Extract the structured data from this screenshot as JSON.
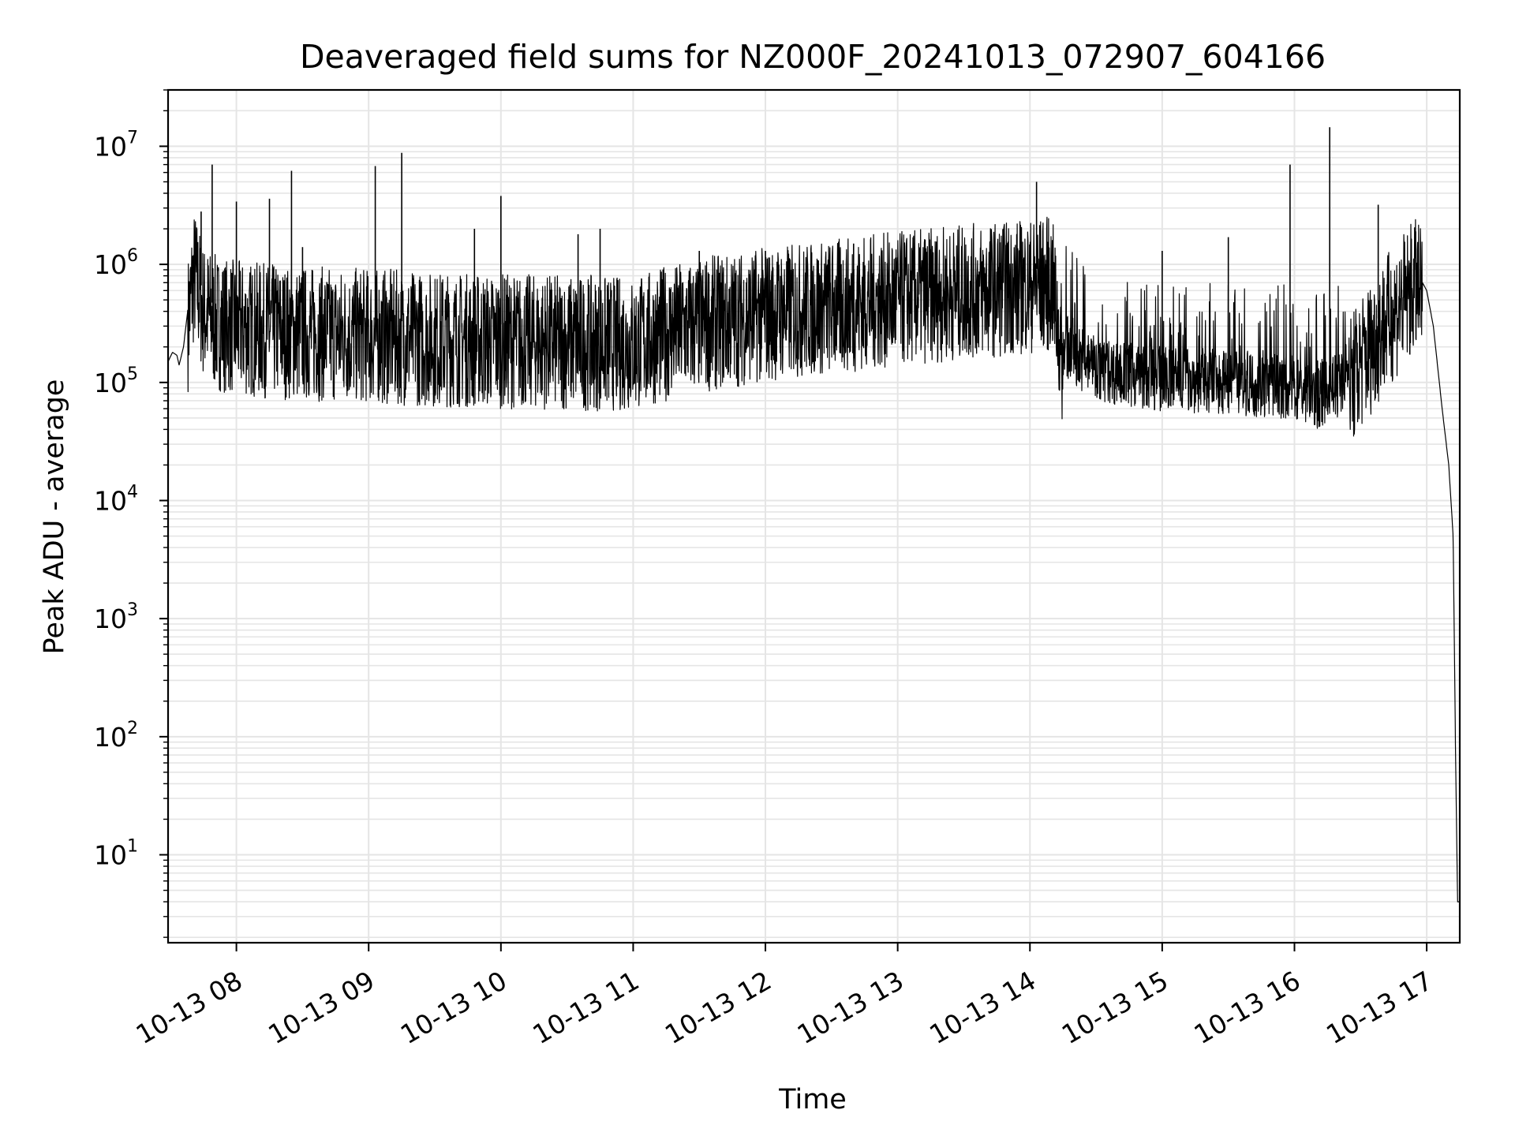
{
  "chart_data": {
    "type": "line",
    "title": "Deaveraged field sums for NZ000F_20241013_072907_604166",
    "xlabel": "Time",
    "ylabel": "Peak ADU - average",
    "yscale": "log",
    "grid": "on (major and minor)",
    "x_ticks": [
      "10-13 08",
      "10-13 09",
      "10-13 10",
      "10-13 11",
      "10-13 12",
      "10-13 13",
      "10-13 14",
      "10-13 15",
      "10-13 16",
      "10-13 17"
    ],
    "y_ticks": [
      {
        "base": "10",
        "exp": "1"
      },
      {
        "base": "10",
        "exp": "2"
      },
      {
        "base": "10",
        "exp": "3"
      },
      {
        "base": "10",
        "exp": "4"
      },
      {
        "base": "10",
        "exp": "5"
      },
      {
        "base": "10",
        "exp": "6"
      },
      {
        "base": "10",
        "exp": "7"
      }
    ],
    "xlim": [
      "2024-10-13 07:29",
      "2024-10-13 17:15"
    ],
    "ylim": [
      1.8,
      30000000
    ],
    "colors": {
      "line": "#000000",
      "grid": "#e5e5e5"
    },
    "series": [
      {
        "x": [
          "2024-10-13 07:29",
          "2024-10-13 07:31",
          "2024-10-13 07:33",
          "2024-10-13 07:34",
          "2024-10-13 07:36",
          "2024-10-13 07:38",
          "2024-10-13 07:40",
          "2024-10-13 07:41",
          "2024-10-13 07:43",
          "2024-10-13 07:45",
          "2024-10-13 07:48",
          "2024-10-13 07:50",
          "2024-10-13 07:55",
          "2024-10-13 08:00",
          "2024-10-13 08:10",
          "2024-10-13 08:20",
          "2024-10-13 08:30",
          "2024-10-13 08:45",
          "2024-10-13 09:00",
          "2024-10-13 09:15",
          "2024-10-13 09:30",
          "2024-10-13 10:00",
          "2024-10-13 10:30",
          "2024-10-13 11:00",
          "2024-10-13 11:15",
          "2024-10-13 11:30",
          "2024-10-13 12:00",
          "2024-10-13 12:30",
          "2024-10-13 13:00",
          "2024-10-13 13:30",
          "2024-10-13 14:00",
          "2024-10-13 14:10",
          "2024-10-13 14:15",
          "2024-10-13 14:30",
          "2024-10-13 15:00",
          "2024-10-13 15:30",
          "2024-10-13 16:00",
          "2024-10-13 16:10",
          "2024-10-13 16:20",
          "2024-10-13 16:30",
          "2024-10-13 16:40",
          "2024-10-13 16:50",
          "2024-10-13 16:55",
          "2024-10-13 17:00",
          "2024-10-13 17:03",
          "2024-10-13 17:07",
          "2024-10-13 17:10",
          "2024-10-13 17:11",
          "2024-10-13 17:12",
          "2024-10-13 17:13",
          "2024-10-13 17:14",
          "2024-10-13 17:15"
        ],
        "values": [
          150000,
          180000,
          170000,
          140000,
          200000,
          420000,
          900000,
          1100000,
          800000,
          550000,
          500000,
          450000,
          420000,
          400000,
          380000,
          370000,
          360000,
          350000,
          340000,
          330000,
          320000,
          310000,
          300000,
          290000,
          360000,
          420000,
          520000,
          600000,
          700000,
          800000,
          900000,
          950000,
          200000,
          120000,
          100000,
          95000,
          85000,
          70000,
          90000,
          200000,
          400000,
          700000,
          900000,
          600000,
          300000,
          60000,
          20000,
          10000,
          5000,
          100,
          4,
          4
        ]
      }
    ],
    "spikes": {
      "x": [
        "2024-10-13 07:44",
        "2024-10-13 07:49",
        "2024-10-13 08:00",
        "2024-10-13 08:15",
        "2024-10-13 08:25",
        "2024-10-13 08:30",
        "2024-10-13 09:03",
        "2024-10-13 09:15",
        "2024-10-13 09:48",
        "2024-10-13 10:00",
        "2024-10-13 10:35",
        "2024-10-13 10:45",
        "2024-10-13 11:30",
        "2024-10-13 12:00",
        "2024-10-13 12:40",
        "2024-10-13 14:03",
        "2024-10-13 15:00",
        "2024-10-13 15:30",
        "2024-10-13 15:58",
        "2024-10-13 16:16",
        "2024-10-13 16:38",
        "2024-10-13 16:55"
      ],
      "values": [
        2800000,
        7000000,
        3400000,
        3600000,
        6200000,
        1400000,
        6800000,
        8800000,
        2000000,
        3800000,
        1800000,
        2000000,
        1300000,
        1300000,
        1500000,
        5000000,
        1300000,
        1700000,
        7000000,
        14500000,
        3200000,
        1900000
      ]
    }
  }
}
